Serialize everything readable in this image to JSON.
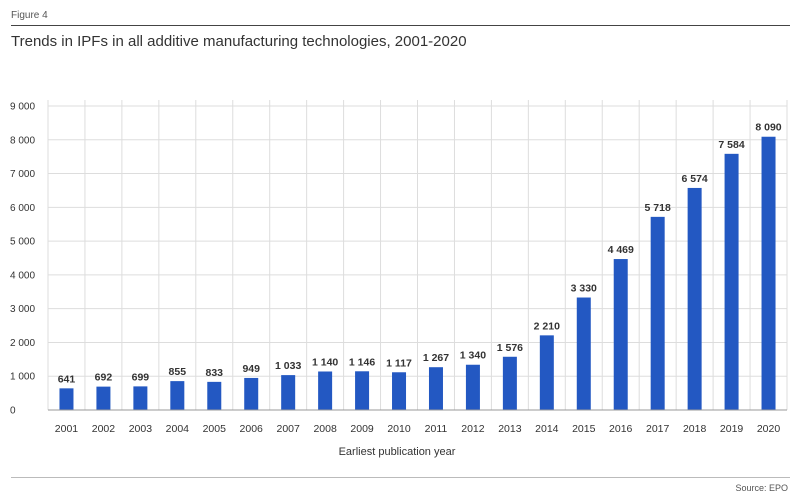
{
  "figure_label": "Figure 4",
  "source": "Source: EPO",
  "colors": {
    "bar": "#2358c2",
    "grid": "#dddddd",
    "axis": "#999999",
    "text": "#333333"
  },
  "chart_data": {
    "type": "bar",
    "title": "Trends in IPFs in all additive manufacturing technologies, 2001-2020",
    "xlabel": "Earliest publication year",
    "ylabel": "",
    "ylim": [
      0,
      9000
    ],
    "yticks": [
      0,
      1000,
      2000,
      3000,
      4000,
      5000,
      6000,
      7000,
      8000,
      9000
    ],
    "ytick_labels": [
      "0",
      "1 000",
      "2 000",
      "3 000",
      "4 000",
      "5 000",
      "6 000",
      "7 000",
      "8 000",
      "9 000"
    ],
    "grid": true,
    "categories": [
      "2001",
      "2002",
      "2003",
      "2004",
      "2005",
      "2006",
      "2007",
      "2008",
      "2009",
      "2010",
      "2011",
      "2012",
      "2013",
      "2014",
      "2015",
      "2016",
      "2017",
      "2018",
      "2019",
      "2020"
    ],
    "values": [
      641,
      692,
      699,
      855,
      833,
      949,
      1033,
      1140,
      1146,
      1117,
      1267,
      1340,
      1576,
      2210,
      3330,
      4469,
      5718,
      6574,
      7584,
      8090
    ],
    "value_labels": [
      "641",
      "692",
      "699",
      "855",
      "833",
      "949",
      "1 033",
      "1 140",
      "1 146",
      "1 117",
      "1 267",
      "1 340",
      "1 576",
      "2 210",
      "3 330",
      "4 469",
      "5 718",
      "6 574",
      "7 584",
      "8 090"
    ]
  }
}
